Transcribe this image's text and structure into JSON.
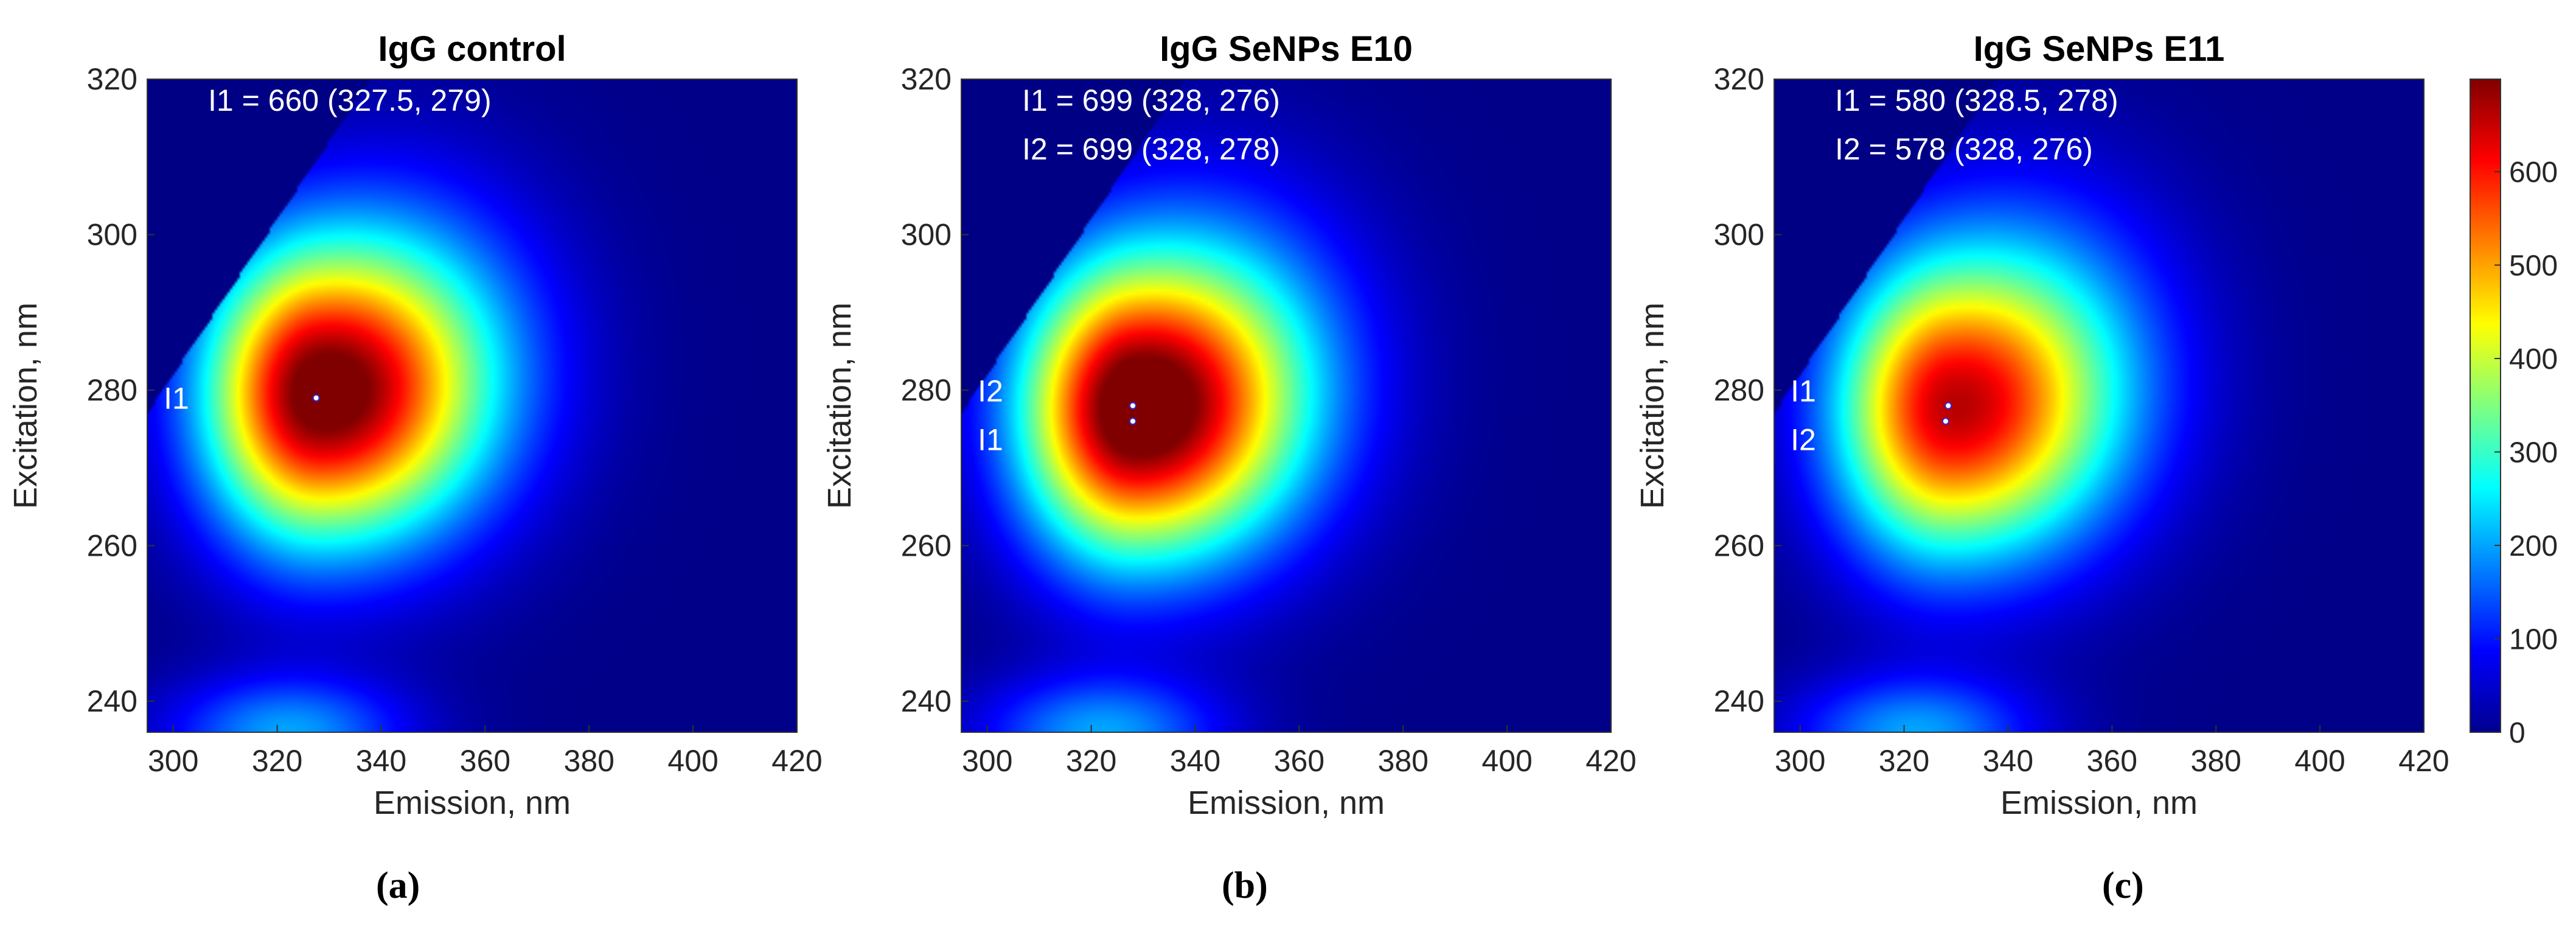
{
  "figure": {
    "captions": [
      "(a)",
      "(b)",
      "(c)"
    ]
  },
  "chart_data": [
    {
      "type": "heatmap",
      "title": "IgG control",
      "xlabel": "Emission, nm",
      "ylabel": "Excitation, nm",
      "xlim": [
        295,
        420
      ],
      "ylim": [
        236,
        320
      ],
      "xticks": [
        300,
        320,
        340,
        360,
        380,
        400,
        420
      ],
      "yticks": [
        240,
        260,
        280,
        300,
        320
      ],
      "peak_amplitude": 660,
      "annotations": [
        "I1 = 660 (327.5, 279)"
      ],
      "peaks": [
        {
          "label": "I1",
          "intensity": 660,
          "emission": 327.5,
          "excitation": 279
        }
      ]
    },
    {
      "type": "heatmap",
      "title": "IgG SeNPs E10",
      "xlabel": "Emission, nm",
      "ylabel": "Excitation, nm",
      "xlim": [
        295,
        420
      ],
      "ylim": [
        236,
        320
      ],
      "xticks": [
        300,
        320,
        340,
        360,
        380,
        400,
        420
      ],
      "yticks": [
        240,
        260,
        280,
        300,
        320
      ],
      "peak_amplitude": 699,
      "annotations": [
        "I1 = 699 (328, 276)",
        "I2 = 699 (328, 278)"
      ],
      "peaks": [
        {
          "label": "I1",
          "intensity": 699,
          "emission": 328,
          "excitation": 276
        },
        {
          "label": "I2",
          "intensity": 699,
          "emission": 328,
          "excitation": 278
        }
      ]
    },
    {
      "type": "heatmap",
      "title": "IgG SeNPs E11",
      "xlabel": "Emission, nm",
      "ylabel": "Excitation, nm",
      "xlim": [
        295,
        420
      ],
      "ylim": [
        236,
        320
      ],
      "xticks": [
        300,
        320,
        340,
        360,
        380,
        400,
        420
      ],
      "yticks": [
        240,
        260,
        280,
        300,
        320
      ],
      "peak_amplitude": 580,
      "annotations": [
        "I1 = 580 (328.5, 278)",
        "I2 = 578 (328, 276)"
      ],
      "peaks": [
        {
          "label": "I1",
          "intensity": 580,
          "emission": 328.5,
          "excitation": 278
        },
        {
          "label": "I2",
          "intensity": 578,
          "emission": 328,
          "excitation": 276
        }
      ]
    }
  ],
  "colorbar": {
    "range": [
      0,
      699
    ],
    "ticks": [
      0,
      100,
      200,
      300,
      400,
      500,
      600
    ],
    "colormap": "jet"
  }
}
